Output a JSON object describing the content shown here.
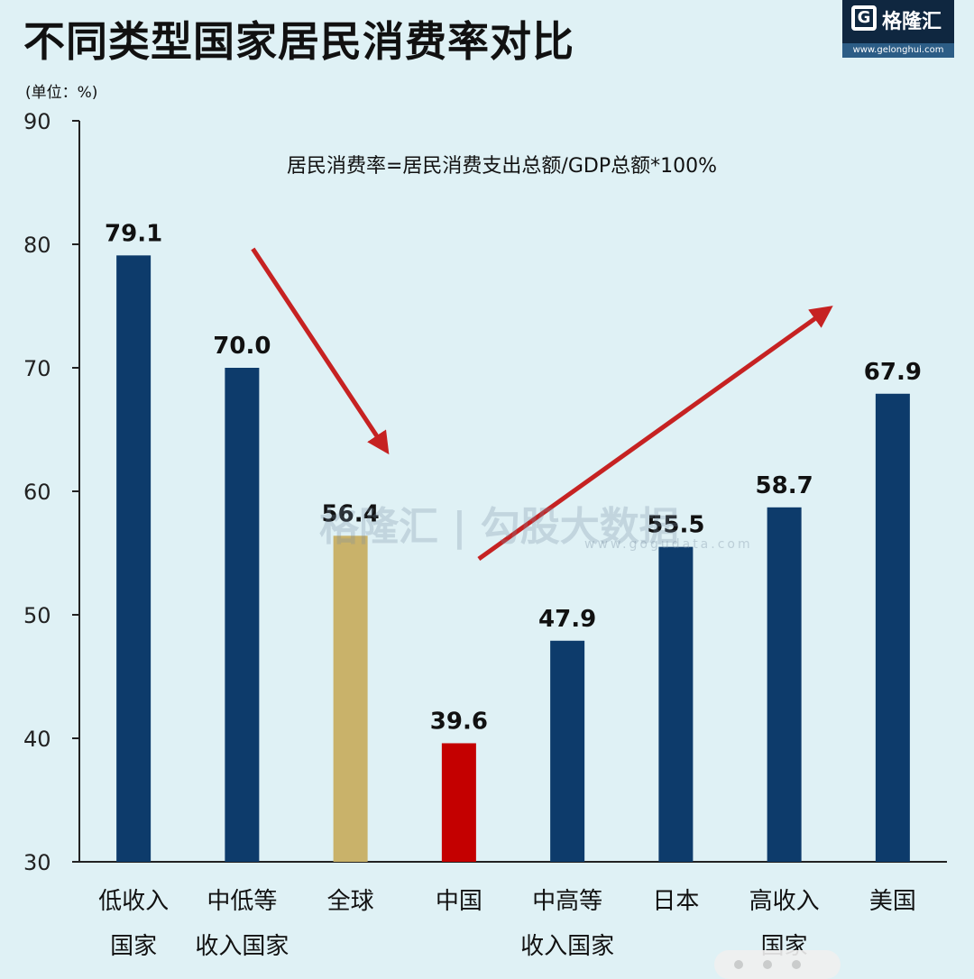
{
  "title": "不同类型国家居民消费率对比",
  "unit_label": "(单位：%)",
  "formula": "居民消费率=居民消费支出总额/GDP总额*100%",
  "logo": {
    "mark": "G",
    "name": "格隆汇",
    "url": "www.gelonghui.com"
  },
  "watermark": {
    "text": "格隆汇 | 勾股大数据",
    "url": "www.gogudata.com"
  },
  "colors": {
    "default_bar": "#0d3b6b",
    "global_bar": "#c9b26a",
    "china_bar": "#c40000",
    "arrow": "#c62222"
  },
  "chart_data": {
    "type": "bar",
    "categories": [
      [
        "低收入",
        "国家"
      ],
      [
        "中低等",
        "收入国家"
      ],
      [
        "全球"
      ],
      [
        "中国"
      ],
      [
        "中高等",
        "收入国家"
      ],
      [
        "日本"
      ],
      [
        "高收入",
        "国家"
      ],
      [
        "美国"
      ]
    ],
    "values": [
      79.1,
      70.0,
      56.4,
      39.6,
      47.9,
      55.5,
      58.7,
      67.9
    ],
    "value_labels": [
      "79.1",
      "70.0",
      "56.4",
      "39.6",
      "47.9",
      "55.5",
      "58.7",
      "67.9"
    ],
    "bar_colors": [
      "#0d3b6b",
      "#0d3b6b",
      "#c9b26a",
      "#c40000",
      "#0d3b6b",
      "#0d3b6b",
      "#0d3b6b",
      "#0d3b6b"
    ],
    "ylim": [
      30,
      90
    ],
    "yticks": [
      30,
      40,
      50,
      60,
      70,
      80,
      90
    ],
    "grid": false,
    "annotations": [
      {
        "type": "arrow",
        "direction": "down",
        "from_index": 1,
        "to_index": 2
      },
      {
        "type": "arrow",
        "direction": "up",
        "from_index": 3,
        "to_index": 6
      }
    ]
  }
}
